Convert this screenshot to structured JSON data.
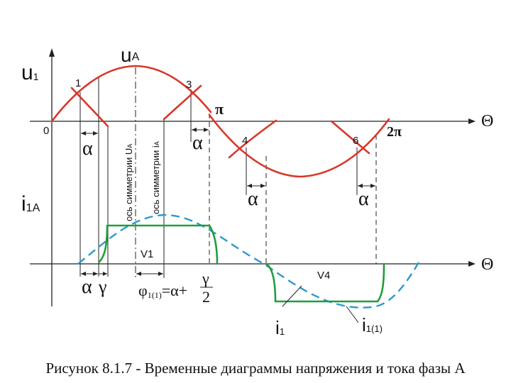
{
  "labels": {
    "u1": "u",
    "u1_sub": "1",
    "uA": "u",
    "uA_sub": "A",
    "i1A": "i",
    "i1A_sub": "1A",
    "theta_top": "Θ",
    "theta_bottom": "Θ",
    "zero": "0",
    "pi": "π",
    "two_pi": "2π",
    "point_1": "1",
    "point_3": "3",
    "point_4": "4",
    "point_6": "6",
    "alpha": "α",
    "gamma": "γ",
    "axis_sym_u": "ось симметрии U",
    "axis_sym_u_sub": "A",
    "axis_sym_i": "ось симметрии i",
    "axis_sym_i_sub": "A",
    "phi_lhs": "φ",
    "phi_sub": "1(1)",
    "phi_rhs": "=α+",
    "frac_num": "γ",
    "frac_den": "2",
    "v1": "V1",
    "v4": "V4",
    "i1": "i",
    "i1_sub": "1",
    "i1_1": "i",
    "i1_1_sub": "1(1)"
  },
  "caption": "Рисунок 8.1.7 - Временные диаграммы напряжения и тока фазы А",
  "colors": {
    "voltage": "#d7372a",
    "current": "#1f9e3a",
    "fundamental": "#2f98cf",
    "axes": "#222222"
  }
}
